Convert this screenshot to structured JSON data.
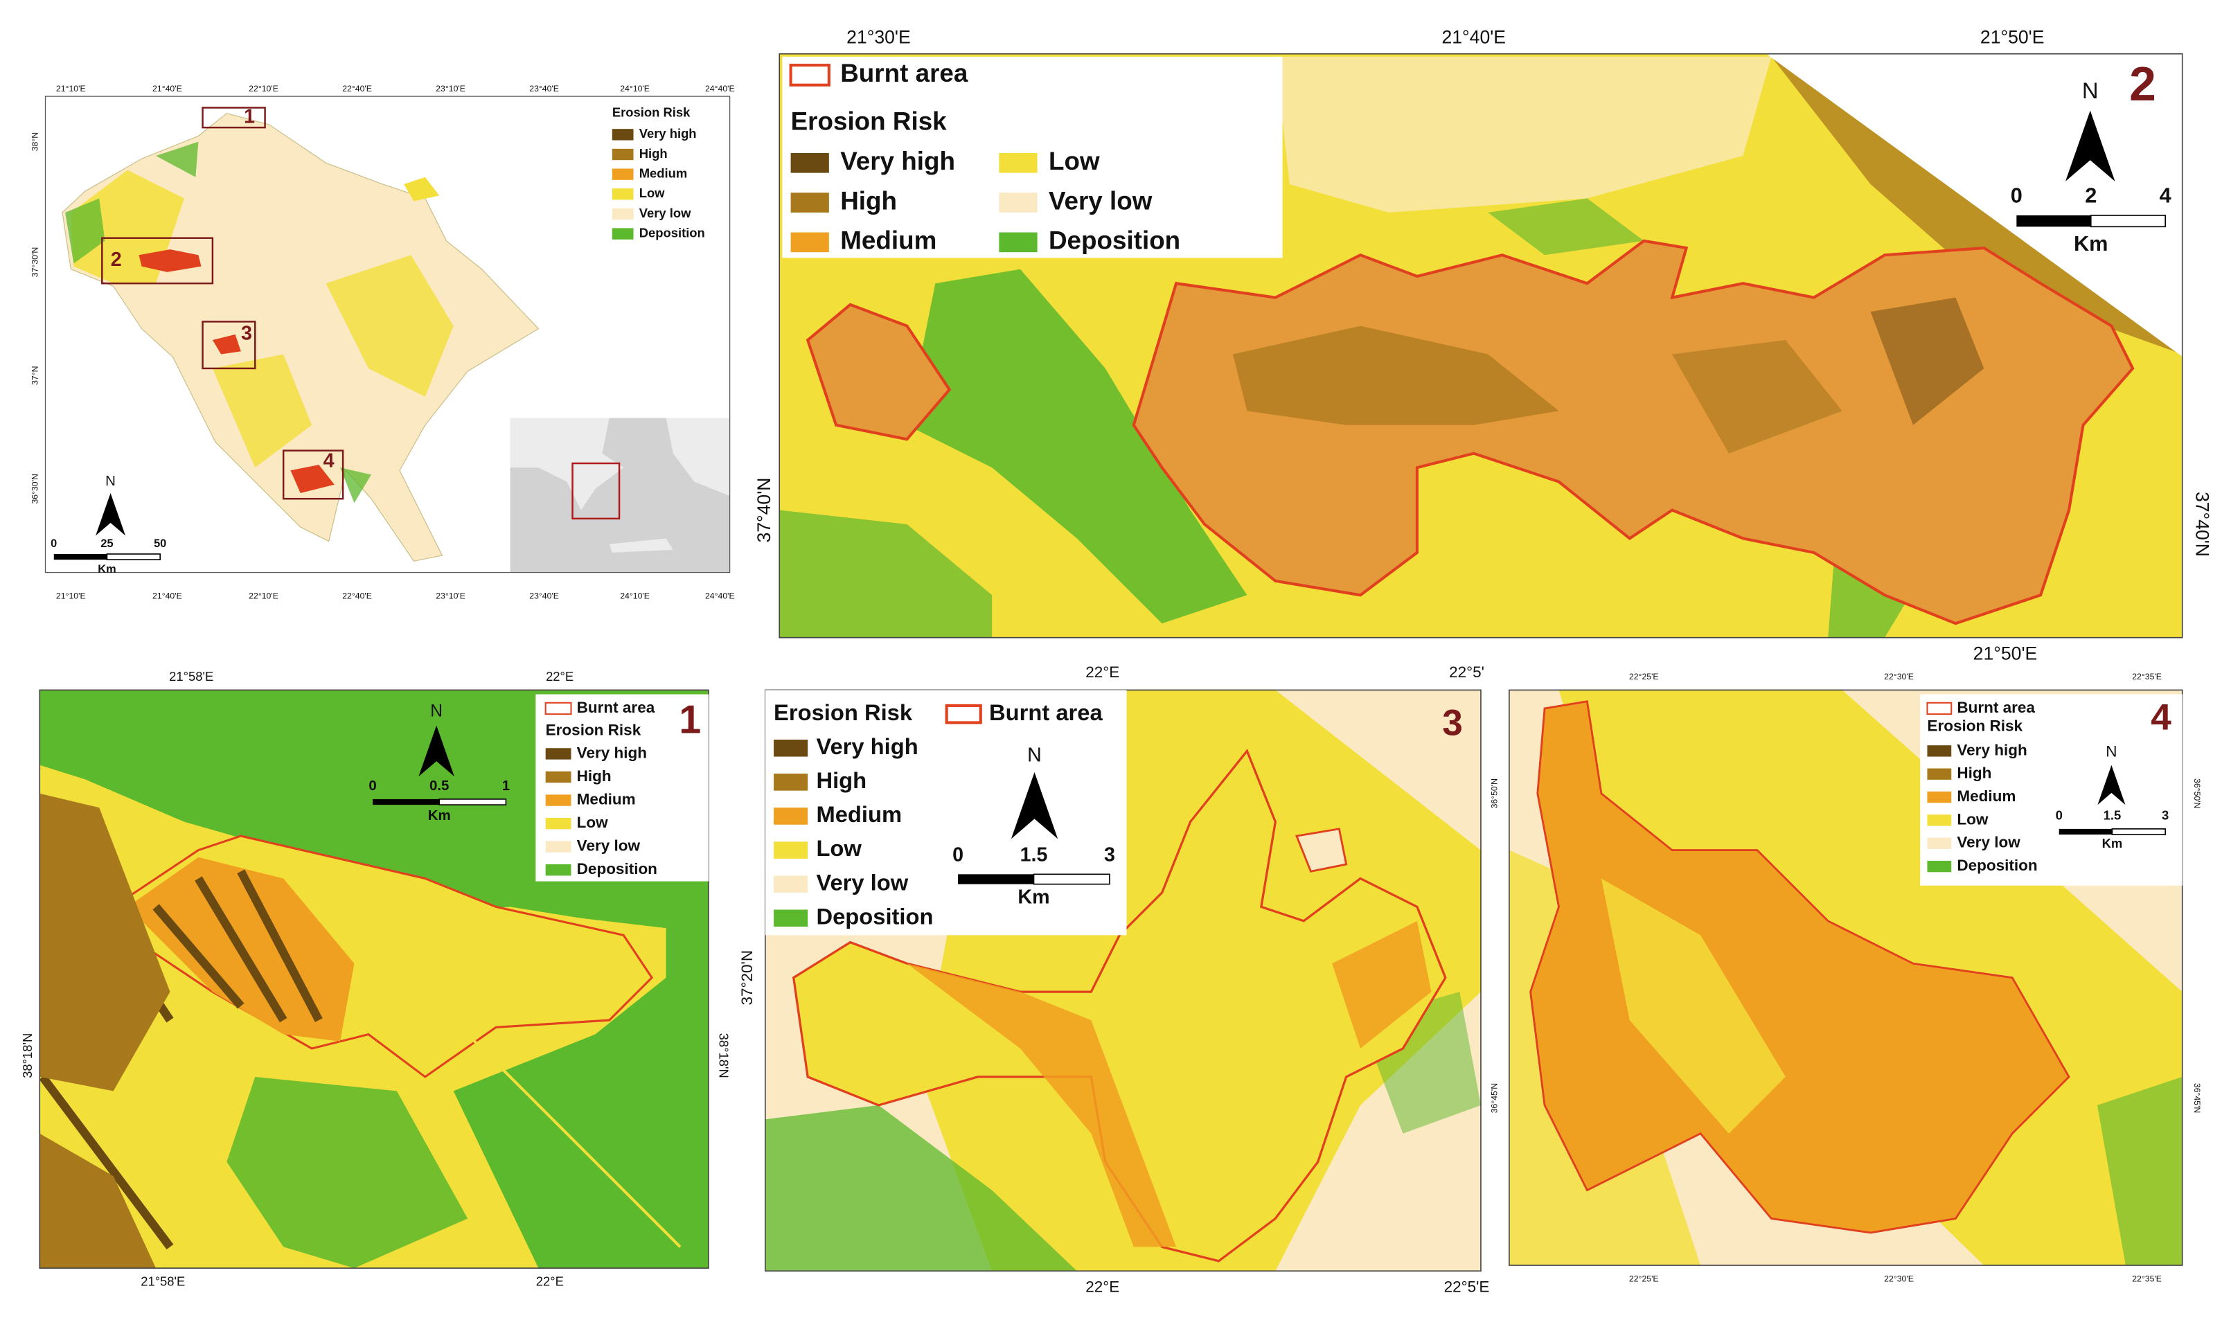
{
  "erosion_risk": {
    "title": "Erosion Risk",
    "classes": [
      {
        "label": "Very high",
        "color": "#6b4a12"
      },
      {
        "label": "High",
        "color": "#a8781c"
      },
      {
        "label": "Medium",
        "color": "#f0a020"
      },
      {
        "label": "Low",
        "color": "#f3df3a"
      },
      {
        "label": "Very low",
        "color": "#fbe9c4"
      },
      {
        "label": "Deposition",
        "color": "#5cb82c"
      }
    ]
  },
  "burnt_area": {
    "label": "Burnt area",
    "color": "#e0401e"
  },
  "north": "N",
  "overview": {
    "lon_top": [
      "21°10'E",
      "21°40'E",
      "22°10'E",
      "22°40'E",
      "23°10'E",
      "23°40'E",
      "24°10'E",
      "24°40'E"
    ],
    "lon_bottom": [
      "21°10'E",
      "21°40'E",
      "22°10'E",
      "22°40'E",
      "23°10'E",
      "23°40'E",
      "24°10'E",
      "24°40'E"
    ],
    "lat_left": [
      "38°N",
      "37°30'N",
      "37°N",
      "36°30'N"
    ],
    "insets": [
      "1",
      "2",
      "3",
      "4"
    ],
    "scale": [
      "0",
      "25",
      "50"
    ],
    "scale_unit": "Km"
  },
  "panels": [
    {
      "number": "1",
      "lon_top": [
        "21°58'E",
        "22°E"
      ],
      "lon_bottom": [
        "21°58'E",
        "22°E"
      ],
      "lat_left": [
        "38°18'N"
      ],
      "lat_right": [
        "38°18'N"
      ],
      "scale": [
        "0",
        "0.5",
        "1"
      ],
      "scale_unit": "Km"
    },
    {
      "number": "2",
      "lon_top": [
        "21°30'E",
        "21°40'E",
        "21°50'E"
      ],
      "lon_bottom": [
        "21°50'E"
      ],
      "lat_left": [
        "37°40'N"
      ],
      "lat_right": [
        "37°40'N"
      ],
      "scale": [
        "0",
        "2",
        "4"
      ],
      "scale_unit": "Km"
    },
    {
      "number": "3",
      "lon_top": [
        "22°E",
        "22°5'"
      ],
      "lon_bottom": [
        "22°E",
        "22°5'E"
      ],
      "lat_left": [
        "37°20'N"
      ],
      "lat_right": [],
      "scale": [
        "0",
        "1.5",
        "3"
      ],
      "scale_unit": "Km"
    },
    {
      "number": "4",
      "lon_top": [
        "22°25'E",
        "22°30'E",
        "22°35'E"
      ],
      "lon_bottom": [
        "22°25'E",
        "22°30'E",
        "22°35'E"
      ],
      "lat_left": [
        "36°50'N",
        "36°45'N"
      ],
      "lat_right": [
        "36°50'N",
        "36°45'N"
      ],
      "scale": [
        "0",
        "1.5",
        "3"
      ],
      "scale_unit": "Km"
    }
  ]
}
